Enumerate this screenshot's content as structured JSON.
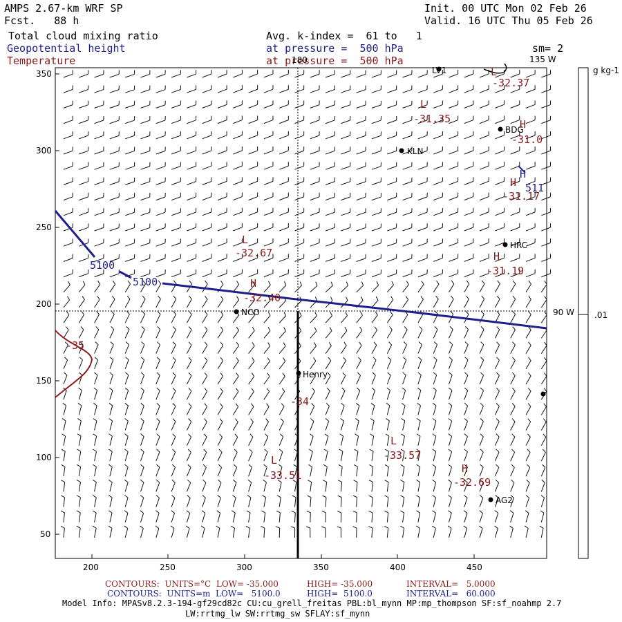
{
  "header": {
    "model": "AMPS 2.67-km WRF SP",
    "fcst": "Fcst.   88 h",
    "init": "Init. 00 UTC Mon 02 Feb 26",
    "valid": "Valid. 16 UTC Thu 05 Feb 26",
    "field1": "Total cloud mixing ratio",
    "field2": "Geopotential height",
    "field3": "Temperature",
    "avg": "Avg. k-index =  61 to   1",
    "pres1": "at pressure =  500 hPa",
    "pres2": "at pressure =  500 hPa",
    "sm": "sm= 2"
  },
  "colors": {
    "height": "#1e1e8c",
    "temperature": "#8b1a1a"
  },
  "axes": {
    "x_ticks": [
      "200",
      "250",
      "300",
      "350",
      "400",
      "450"
    ],
    "y_ticks": [
      "350",
      "300",
      "250",
      "200",
      "150",
      "100",
      "50"
    ],
    "lon_top_180": "180",
    "lon_top_135": "135 W",
    "lon_right_90": "90 W"
  },
  "colorbar": {
    "unit": "g kg-1",
    "value": ".01"
  },
  "stations": [
    "KLN",
    "BDG",
    "HRC",
    "NCO",
    "Henry",
    "AG2",
    "LV1"
  ],
  "height_labels": [
    "5100",
    "5100",
    "511"
  ],
  "temp_labels": [
    {
      "sym": "L",
      "val": "-32.37"
    },
    {
      "sym": "L",
      "val": "-31.35"
    },
    {
      "sym": "H",
      "val": "-31.0"
    },
    {
      "sym": "H",
      "val": "-31.17"
    },
    {
      "sym": "L",
      "val": "-32.67"
    },
    {
      "sym": "H",
      "val": "-31.19"
    },
    {
      "sym": "H",
      "val": "-32.40"
    },
    {
      "sym": "",
      "val": "-35"
    },
    {
      "sym": "",
      "val": "-34"
    },
    {
      "sym": "L",
      "val": "-33.57"
    },
    {
      "sym": "L",
      "val": "-33.51"
    },
    {
      "sym": "H",
      "val": "-32.69"
    }
  ],
  "footer": {
    "t_contours": "CONTOURS:  UNITS=°C  LOW= -35.000",
    "t_high": "HIGH= -35.000",
    "t_interval": "INTERVAL=   5.0000",
    "h_contours": "CONTOURS:  UNITS=m  LOW=   5100.0",
    "h_high": "HIGH=  5100.0",
    "h_interval": "INTERVAL=   60.000",
    "model_info": "Model Info: MPASv8.2.3-194-gf29cd82c CU:cu_grell_freitas PBL:bl_mynn MP:mp_thompson SF:sf_noahmp 2.7",
    "model_info2": "LW:rrtmg_lw SW:rrtmg_sw SFLAY:sf_mynn"
  }
}
